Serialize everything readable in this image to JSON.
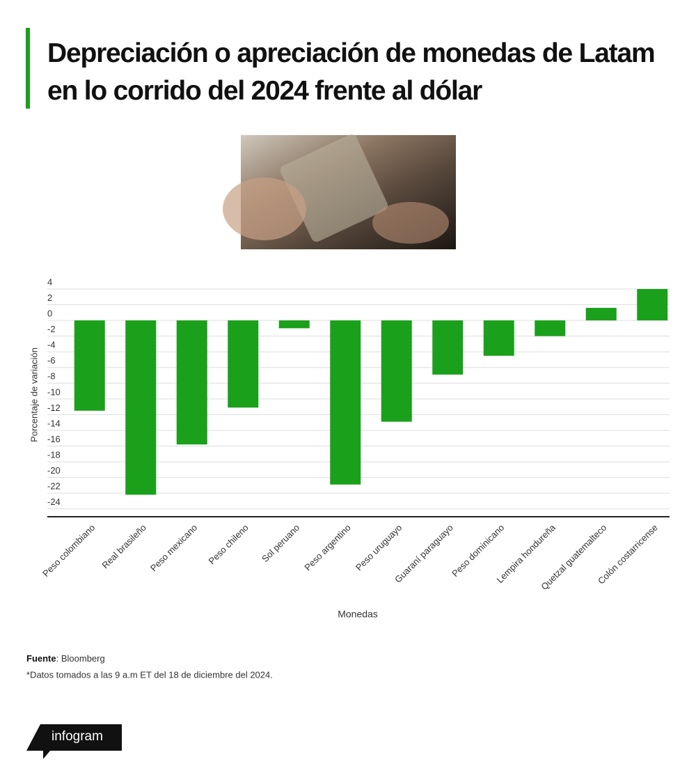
{
  "chart_data": {
    "type": "bar",
    "title": "Depreciación o apreciación de monedas de Latam en lo corrido del 2024  frente al dólar",
    "x_label": "Monedas",
    "y_label": "Porcentaje de variación",
    "categories": [
      "Peso colombiano",
      "Real brasileño",
      "Peso mexicano",
      "Peso chileno",
      "Sol peruano",
      "Peso argentino",
      "Peso uruguayo",
      "Guaraní paraguayo",
      "Peso dominicano",
      "Lempira hondureña",
      "Quetzal guatemalteco",
      "Colón costarricense"
    ],
    "values": [
      -11.5,
      -22.2,
      -15.8,
      -11.1,
      -1.0,
      -20.9,
      -12.9,
      -6.9,
      -4.5,
      -2.0,
      1.6,
      4.0
    ],
    "color": "#1aa01a",
    "ylim": [
      -25,
      4
    ],
    "yticks": [
      4,
      2,
      0,
      -2,
      -4,
      -6,
      -8,
      -10,
      -12,
      -14,
      -16,
      -18,
      -20,
      -22,
      -24
    ],
    "grid": true
  },
  "source": {
    "label": "Fuente",
    "text": ": Bloomberg"
  },
  "note": "*Datos tomados a las 9 a.m ET del 18 de diciembre del 2024.",
  "brand": "infogram"
}
